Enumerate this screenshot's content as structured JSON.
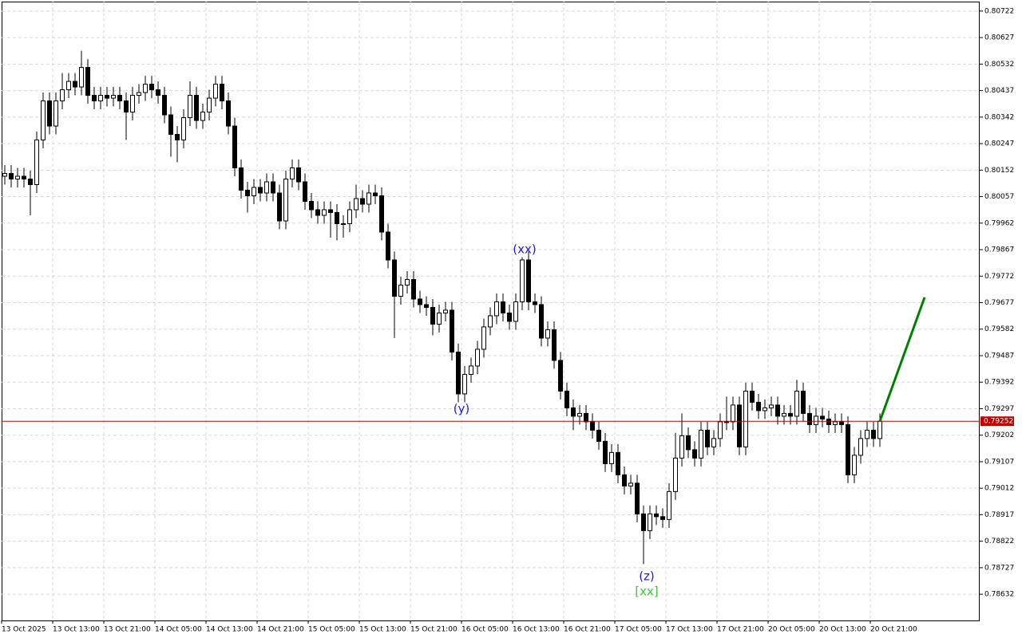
{
  "chart_data": {
    "type": "candlestick",
    "categories": [
      "13 Oct 2025",
      null,
      null,
      null,
      null,
      null,
      null,
      null,
      "13 Oct 13:00",
      null,
      null,
      null,
      null,
      null,
      null,
      null,
      "13 Oct 21:00",
      null,
      null,
      null,
      null,
      null,
      null,
      null,
      "14 Oct 05:00",
      null,
      null,
      null,
      null,
      null,
      null,
      null,
      "14 Oct 13:00",
      null,
      null,
      null,
      null,
      null,
      null,
      null,
      "14 Oct 21:00",
      null,
      null,
      null,
      null,
      null,
      null,
      null,
      "15 Oct 05:00",
      null,
      null,
      null,
      null,
      null,
      null,
      null,
      "15 Oct 13:00",
      null,
      null,
      null,
      null,
      null,
      null,
      null,
      "15 Oct 21:00",
      null,
      null,
      null,
      null,
      null,
      null,
      null,
      "16 Oct 05:00",
      null,
      null,
      null,
      null,
      null,
      null,
      null,
      "16 Oct 13:00",
      null,
      null,
      null,
      null,
      null,
      null,
      null,
      "16 Oct 21:00",
      null,
      null,
      null,
      null,
      null,
      null,
      null,
      "17 Oct 05:00",
      null,
      null,
      null,
      null,
      null,
      null,
      null,
      "17 Oct 13:00",
      null,
      null,
      null,
      null,
      null,
      null,
      null,
      "17 Oct 21:00",
      null,
      null,
      null,
      null,
      null,
      null,
      null,
      "20 Oct 05:00",
      null,
      null,
      null,
      null,
      null,
      null,
      null,
      "20 Oct 13:00",
      null,
      null,
      null,
      null,
      null,
      null,
      null,
      "20 Oct 21:00",
      null
    ],
    "open": [
      0.8013,
      0.8014,
      0.8012,
      0.8013,
      0.8012,
      0.801,
      0.8026,
      0.804,
      0.8031,
      0.804,
      0.8044,
      0.8047,
      0.8045,
      0.8052,
      0.8042,
      0.804,
      0.8042,
      0.8041,
      0.8042,
      0.804,
      0.8036,
      0.8042,
      0.8043,
      0.8046,
      0.8044,
      0.8042,
      0.8035,
      0.8028,
      0.8026,
      0.8034,
      0.8042,
      0.8033,
      0.8036,
      0.8041,
      0.8046,
      0.804,
      0.8031,
      0.8016,
      0.8008,
      0.8006,
      0.8009,
      0.8007,
      0.8011,
      0.8007,
      0.7997,
      0.8012,
      0.8016,
      0.8011,
      0.8004,
      0.8001,
      0.7999,
      0.8001,
      0.8,
      0.7996,
      0.7996,
      0.8001,
      0.8005,
      0.8003,
      0.8007,
      0.8006,
      0.7993,
      0.7983,
      0.797,
      0.7974,
      0.7976,
      0.7969,
      0.7967,
      0.7966,
      0.796,
      0.7964,
      0.7965,
      0.795,
      0.7935,
      0.7942,
      0.7945,
      0.7951,
      0.7959,
      0.7963,
      0.7968,
      0.7964,
      0.7961,
      0.7968,
      0.7983,
      0.7968,
      0.7967,
      0.7955,
      0.7958,
      0.7947,
      0.7936,
      0.793,
      0.7927,
      0.7928,
      0.7925,
      0.7922,
      0.7918,
      0.791,
      0.7914,
      0.7906,
      0.7902,
      0.7903,
      0.7892,
      0.7886,
      0.7892,
      0.7891,
      0.789,
      0.79,
      0.7912,
      0.792,
      0.7915,
      0.7912,
      0.7922,
      0.7916,
      0.7919,
      0.7925,
      0.7925,
      0.7931,
      0.7916,
      0.7936,
      0.7932,
      0.7929,
      0.793,
      0.7931,
      0.7927,
      0.7928,
      0.7927,
      0.7936,
      0.7928,
      0.7924,
      0.7927,
      0.7926,
      0.7924,
      0.7925,
      0.7924,
      0.7906,
      0.7913,
      0.7919,
      0.7922,
      0.7919
    ],
    "high": [
      0.8017,
      0.8017,
      0.8016,
      0.8016,
      0.8015,
      0.8029,
      0.8043,
      0.8043,
      0.8043,
      0.805,
      0.805,
      0.805,
      0.8058,
      0.8055,
      0.8045,
      0.8045,
      0.8045,
      0.8045,
      0.8045,
      0.8043,
      0.8045,
      0.8046,
      0.8049,
      0.8049,
      0.8047,
      0.8045,
      0.8038,
      0.8031,
      0.8037,
      0.8047,
      0.8045,
      0.8039,
      0.8044,
      0.8049,
      0.8049,
      0.8043,
      0.8034,
      0.8019,
      0.8011,
      0.8012,
      0.8012,
      0.8014,
      0.8014,
      0.801,
      0.8015,
      0.8019,
      0.8019,
      0.8014,
      0.8007,
      0.8004,
      0.8004,
      0.8004,
      0.8003,
      0.7999,
      0.8004,
      0.801,
      0.8008,
      0.801,
      0.801,
      0.8009,
      0.7996,
      0.7986,
      0.7977,
      0.7979,
      0.7979,
      0.7972,
      0.797,
      0.7969,
      0.7967,
      0.7968,
      0.7968,
      0.7953,
      0.7945,
      0.7948,
      0.7954,
      0.7962,
      0.7966,
      0.7971,
      0.7971,
      0.7967,
      0.7971,
      0.7984,
      0.7986,
      0.7971,
      0.797,
      0.7961,
      0.7961,
      0.795,
      0.7939,
      0.7933,
      0.7931,
      0.7931,
      0.7928,
      0.7925,
      0.7921,
      0.7917,
      0.7917,
      0.7909,
      0.7906,
      0.7906,
      0.7895,
      0.7895,
      0.7895,
      0.7894,
      0.7903,
      0.7921,
      0.7928,
      0.7923,
      0.7918,
      0.7925,
      0.7925,
      0.7922,
      0.7928,
      0.7934,
      0.7934,
      0.7934,
      0.7939,
      0.7939,
      0.7935,
      0.7933,
      0.7934,
      0.7934,
      0.7931,
      0.7931,
      0.794,
      0.7939,
      0.7931,
      0.793,
      0.793,
      0.7929,
      0.7928,
      0.7928,
      0.7927,
      0.7916,
      0.7922,
      0.7925,
      0.7925,
      0.7928
    ],
    "low": [
      0.801,
      0.8009,
      0.8009,
      0.8009,
      0.7999,
      0.8007,
      0.8023,
      0.8028,
      0.8028,
      0.8037,
      0.8041,
      0.8042,
      0.8042,
      0.8039,
      0.8037,
      0.8037,
      0.8038,
      0.8038,
      0.8037,
      0.8026,
      0.8033,
      0.8039,
      0.804,
      0.8041,
      0.8039,
      0.8032,
      0.802,
      0.8018,
      0.8023,
      0.8031,
      0.803,
      0.803,
      0.8033,
      0.8038,
      0.8037,
      0.8028,
      0.8013,
      0.8005,
      0.8,
      0.8003,
      0.8004,
      0.8004,
      0.8004,
      0.7994,
      0.7994,
      0.8009,
      0.8008,
      0.8001,
      0.7998,
      0.7996,
      0.7996,
      0.7991,
      0.799,
      0.7991,
      0.7993,
      0.7998,
      0.8,
      0.8,
      0.8003,
      0.799,
      0.798,
      0.7955,
      0.7967,
      0.7971,
      0.7966,
      0.7964,
      0.7963,
      0.7956,
      0.7957,
      0.7961,
      0.7947,
      0.7932,
      0.7932,
      0.7939,
      0.7942,
      0.7948,
      0.7956,
      0.796,
      0.7961,
      0.7958,
      0.7958,
      0.7965,
      0.7965,
      0.7964,
      0.7952,
      0.7952,
      0.7944,
      0.7933,
      0.7927,
      0.7922,
      0.7924,
      0.7922,
      0.7919,
      0.7915,
      0.7907,
      0.7907,
      0.7903,
      0.7899,
      0.7899,
      0.7889,
      0.7874,
      0.7883,
      0.7888,
      0.7887,
      0.7887,
      0.7897,
      0.7909,
      0.7912,
      0.7909,
      0.7909,
      0.7913,
      0.7913,
      0.7916,
      0.7922,
      0.7922,
      0.7913,
      0.7913,
      0.7929,
      0.7926,
      0.7926,
      0.7927,
      0.7924,
      0.7924,
      0.7924,
      0.7924,
      0.7925,
      0.7921,
      0.7921,
      0.7923,
      0.7921,
      0.7921,
      0.7921,
      0.7903,
      0.7903,
      0.791,
      0.7916,
      0.7916,
      0.7916
    ],
    "close": [
      0.8014,
      0.8012,
      0.8013,
      0.8012,
      0.801,
      0.8026,
      0.804,
      0.8031,
      0.804,
      0.8044,
      0.8047,
      0.8045,
      0.8052,
      0.8042,
      0.804,
      0.8042,
      0.8041,
      0.8042,
      0.804,
      0.8036,
      0.8042,
      0.8043,
      0.8046,
      0.8044,
      0.8042,
      0.8035,
      0.8028,
      0.8026,
      0.8034,
      0.8042,
      0.8033,
      0.8036,
      0.8041,
      0.8046,
      0.804,
      0.8031,
      0.8016,
      0.8008,
      0.8006,
      0.8009,
      0.8007,
      0.8011,
      0.8007,
      0.7997,
      0.8012,
      0.8016,
      0.8011,
      0.8004,
      0.8001,
      0.7999,
      0.8001,
      0.8,
      0.7996,
      0.7996,
      0.8001,
      0.8005,
      0.8003,
      0.8007,
      0.8006,
      0.7993,
      0.7983,
      0.797,
      0.7974,
      0.7976,
      0.7969,
      0.7967,
      0.7966,
      0.796,
      0.7964,
      0.7965,
      0.795,
      0.7935,
      0.7942,
      0.7945,
      0.7951,
      0.7959,
      0.7963,
      0.7968,
      0.7964,
      0.7961,
      0.7968,
      0.7983,
      0.7968,
      0.7967,
      0.7955,
      0.7958,
      0.7947,
      0.7936,
      0.793,
      0.7927,
      0.7928,
      0.7925,
      0.7922,
      0.7918,
      0.791,
      0.7914,
      0.7906,
      0.7902,
      0.7903,
      0.7892,
      0.7886,
      0.7892,
      0.7891,
      0.789,
      0.79,
      0.7912,
      0.792,
      0.7915,
      0.7912,
      0.7922,
      0.7916,
      0.7919,
      0.7925,
      0.7925,
      0.7931,
      0.7916,
      0.7936,
      0.7932,
      0.7929,
      0.793,
      0.7931,
      0.7927,
      0.7928,
      0.7927,
      0.7936,
      0.7928,
      0.7924,
      0.7927,
      0.7926,
      0.7924,
      0.7925,
      0.7924,
      0.7906,
      0.7913,
      0.7919,
      0.7922,
      0.7919,
      0.79252
    ],
    "ylim": [
      0.78538,
      0.80756
    ],
    "yticks": [
      0.80722,
      0.80627,
      0.80532,
      0.80437,
      0.80342,
      0.80247,
      0.80152,
      0.80057,
      0.79962,
      0.79867,
      0.79772,
      0.79677,
      0.79582,
      0.79487,
      0.79392,
      0.79297,
      0.79202,
      0.79107,
      0.79012,
      0.78917,
      0.78822,
      0.78727,
      0.78632
    ],
    "grid": true,
    "up_color": "#ffffff",
    "down_color": "#000000",
    "price_line": {
      "value": 0.79252,
      "color": "#c00000"
    },
    "projection": {
      "color": "#008000",
      "values": [
        0.79252,
        0.79696
      ]
    },
    "annotations": [
      {
        "text": "(xx)",
        "color": "#1e1ed2"
      },
      {
        "text": "(y)",
        "color": "#1e1ed2"
      },
      {
        "text": "(z)",
        "color": "#1e1ed2"
      },
      {
        "text": "[xx]",
        "color": "#3cc83c"
      }
    ]
  }
}
